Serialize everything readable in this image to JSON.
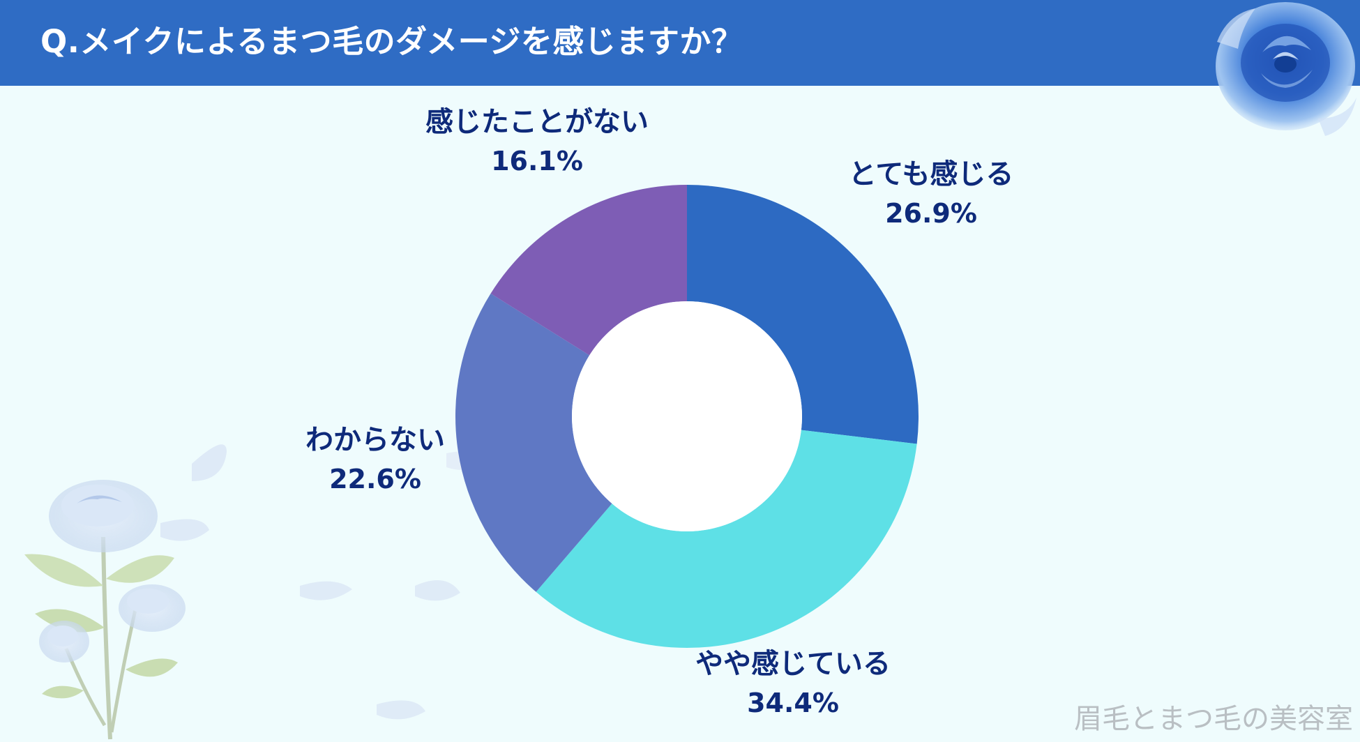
{
  "header": {
    "title": "Q.メイクによるまつ毛のダメージを感じますか？"
  },
  "chart_data": {
    "type": "pie",
    "variant": "donut",
    "title": "Q.メイクによるまつ毛のダメージを感じますか？",
    "categories": [
      "とても感じる",
      "やや感じている",
      "わからない",
      "感じたことがない"
    ],
    "values": [
      26.9,
      34.4,
      22.6,
      16.1
    ],
    "value_labels": [
      "26.9%",
      "34.4%",
      "22.6%",
      "16.1%"
    ],
    "colors": [
      "#2D6AC2",
      "#5EE0E6",
      "#5F78C4",
      "#7E5DB5"
    ],
    "start_angle": "12 o'clock",
    "direction": "clockwise",
    "legend": "none (labels placed beside slices)"
  },
  "watermark": {
    "text": "眉毛とまつ毛の美容室"
  },
  "colors": {
    "header_bg": "#2F6CC4",
    "page_bg": "#EFFCFD",
    "label_text": "#0E2A7A",
    "watermark": "#B9BFC3"
  },
  "icons": {
    "top_right": "blue-rose-icon",
    "bottom_left": "blue-rose-bouquet-icon"
  }
}
